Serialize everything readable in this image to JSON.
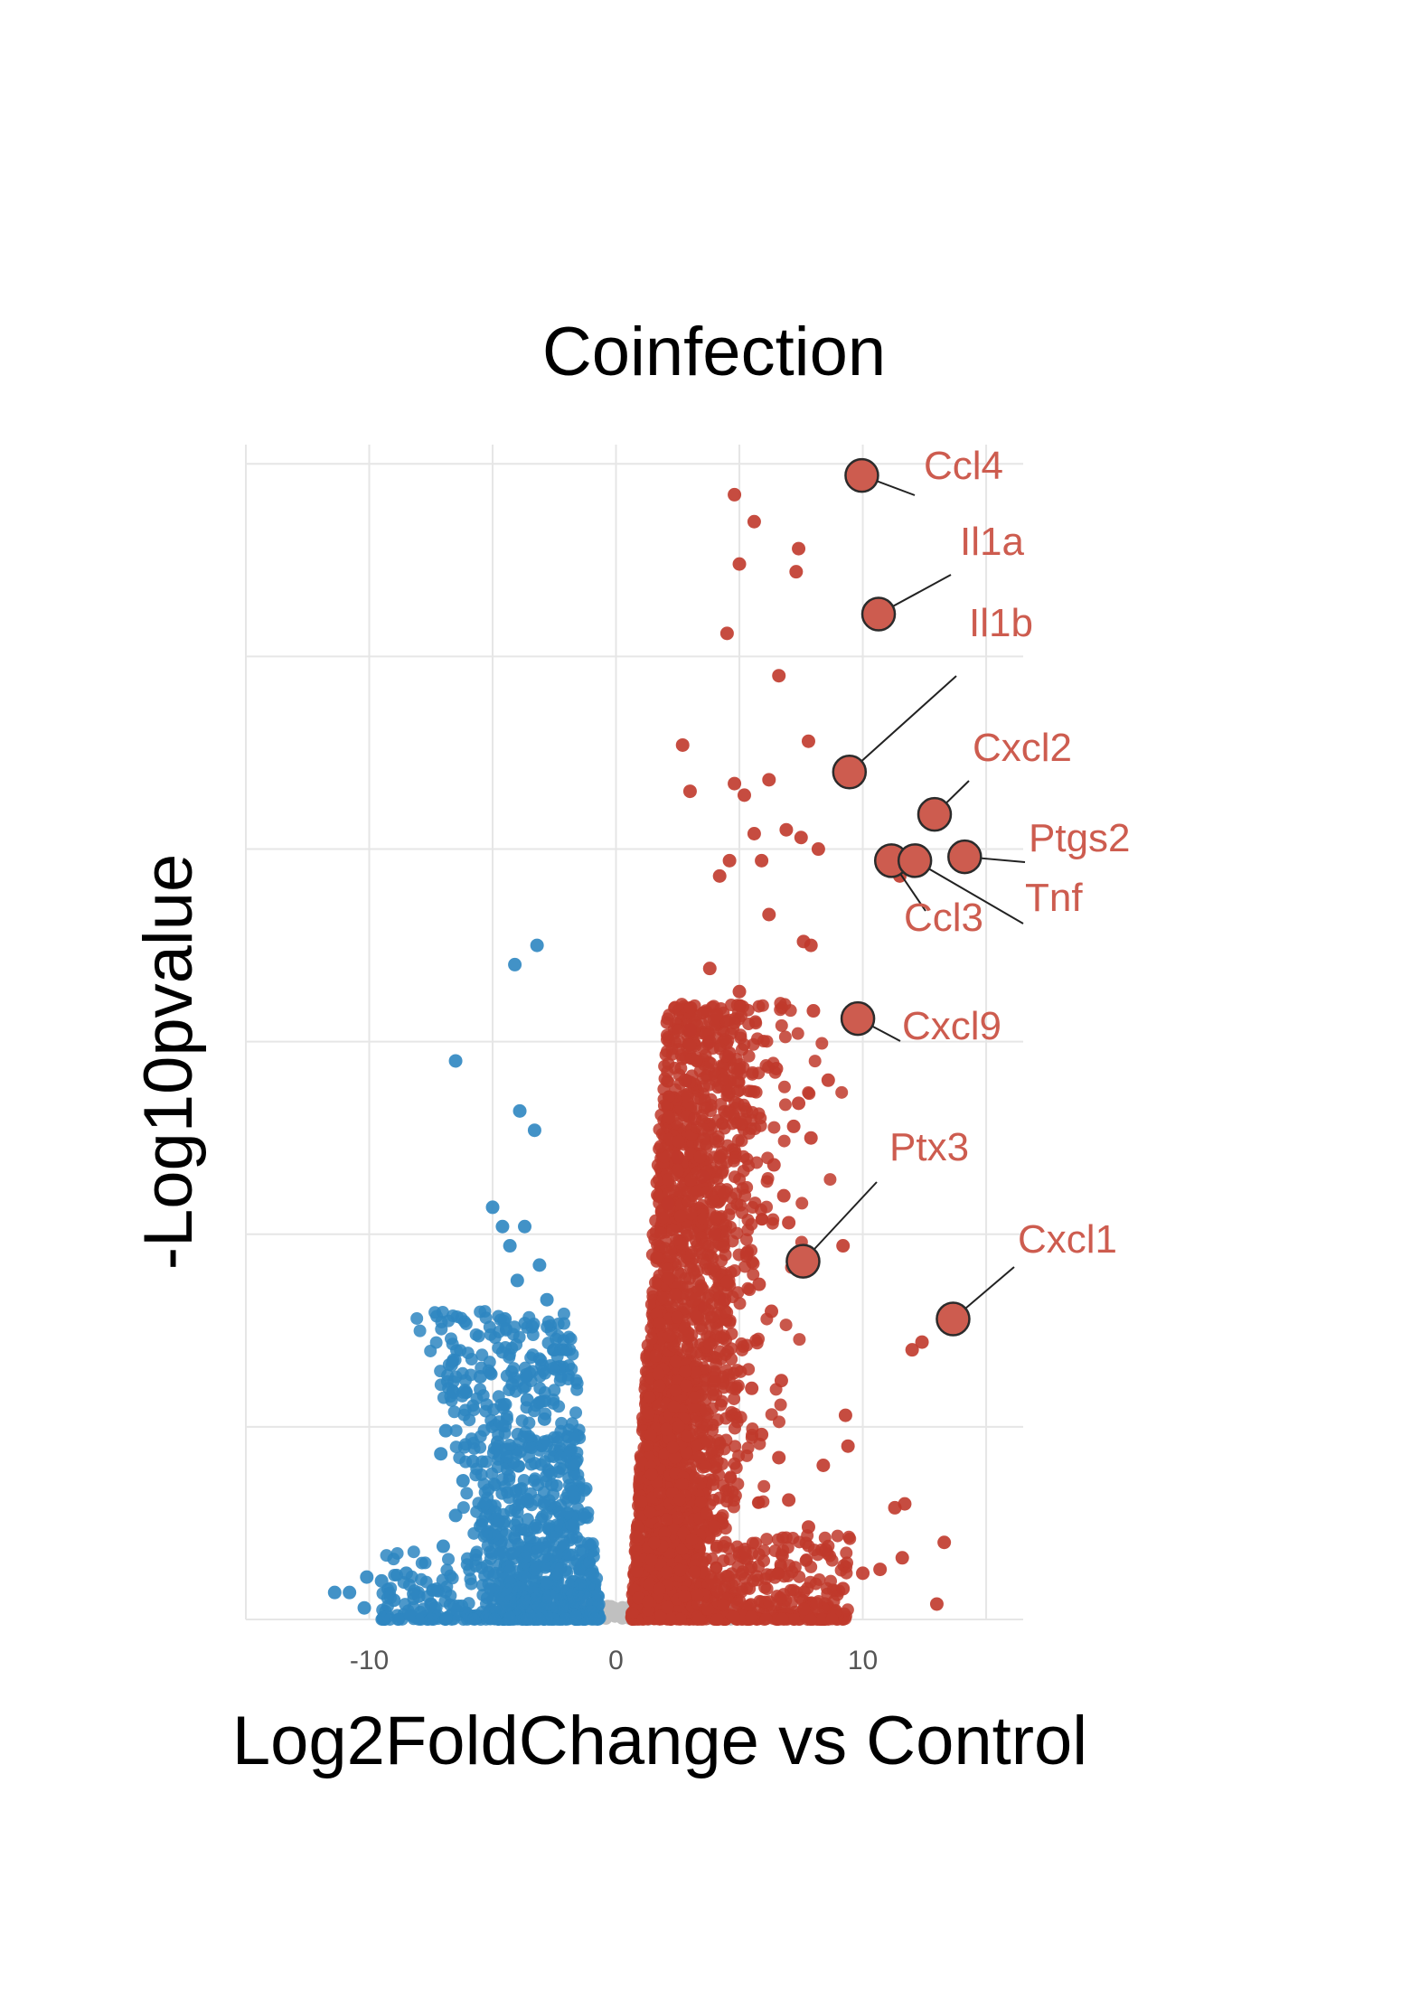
{
  "chart_data": {
    "type": "scatter",
    "title": "Coinfection",
    "xlabel": "Log2FoldChange vs Control",
    "ylabel": "-Log10pvalue",
    "xlim": [
      -15,
      16.5
    ],
    "ylim": [
      0,
      30.5
    ],
    "x_ticks": [
      -10,
      0,
      10
    ],
    "y_grid": [
      0,
      5,
      10,
      15,
      20,
      25,
      30
    ],
    "grid": true,
    "colors": {
      "up": "#c0392b",
      "down": "#2e86c1",
      "ns": "#c0c0c0",
      "highlight": "#cd5c4f",
      "label": "#cd5c4f"
    },
    "series": [
      {
        "group": "down",
        "points": [
          [
            -3.2,
            17.5
          ],
          [
            -4.1,
            17.0
          ],
          [
            -6.5,
            14.5
          ],
          [
            -3.9,
            13.2
          ],
          [
            -3.3,
            12.7
          ],
          [
            -5.0,
            10.7
          ],
          [
            -4.6,
            10.2
          ],
          [
            -3.7,
            10.2
          ],
          [
            -4.3,
            9.7
          ],
          [
            -3.1,
            9.2
          ],
          [
            -4.0,
            8.8
          ],
          [
            -2.8,
            8.3
          ],
          [
            -4.5,
            7.8
          ],
          [
            -3.4,
            7.6
          ],
          [
            -2.5,
            7.0
          ],
          [
            -5.5,
            6.3
          ],
          [
            -3.0,
            6.6
          ],
          [
            -4.2,
            6.1
          ],
          [
            -6.6,
            5.9
          ],
          [
            -3.6,
            5.7
          ],
          [
            -2.9,
            5.2
          ],
          [
            -6.9,
            4.9
          ],
          [
            -4.8,
            4.6
          ],
          [
            -3.5,
            4.5
          ],
          [
            -7.1,
            4.3
          ],
          [
            -5.8,
            4.1
          ],
          [
            -6.2,
            3.6
          ],
          [
            -4.4,
            3.9
          ],
          [
            -2.6,
            3.5
          ],
          [
            -5.2,
            2.9
          ],
          [
            -6.5,
            2.7
          ],
          [
            -7.0,
            1.9
          ],
          [
            -8.5,
            1.2
          ],
          [
            -9.5,
            1.0
          ],
          [
            -10.1,
            1.1
          ],
          [
            -10.8,
            0.7
          ],
          [
            -11.4,
            0.7
          ],
          [
            -10.2,
            0.3
          ],
          [
            -9.0,
            0.5
          ],
          [
            -8.0,
            0.6
          ],
          [
            -7.5,
            0.4
          ]
        ]
      },
      {
        "group": "up",
        "points": [
          [
            4.8,
            29.2
          ],
          [
            5.6,
            28.5
          ],
          [
            7.4,
            27.8
          ],
          [
            5.0,
            27.4
          ],
          [
            7.3,
            27.2
          ],
          [
            4.5,
            25.6
          ],
          [
            6.6,
            24.5
          ],
          [
            2.7,
            22.7
          ],
          [
            7.8,
            22.8
          ],
          [
            6.2,
            21.8
          ],
          [
            4.8,
            21.7
          ],
          [
            3.0,
            21.5
          ],
          [
            5.2,
            21.4
          ],
          [
            6.9,
            20.5
          ],
          [
            5.6,
            20.4
          ],
          [
            7.5,
            20.3
          ],
          [
            8.2,
            20.0
          ],
          [
            4.6,
            19.7
          ],
          [
            11.5,
            19.3
          ],
          [
            4.2,
            19.3
          ],
          [
            5.9,
            19.7
          ],
          [
            6.2,
            18.3
          ],
          [
            7.6,
            17.6
          ],
          [
            7.9,
            17.5
          ],
          [
            3.8,
            16.9
          ],
          [
            5.0,
            16.3
          ],
          [
            8.0,
            15.8
          ],
          [
            3.0,
            15.3
          ],
          [
            3.8,
            15.0
          ],
          [
            4.6,
            14.7
          ],
          [
            6.5,
            14.3
          ],
          [
            8.6,
            14.0
          ],
          [
            7.4,
            13.4
          ],
          [
            7.2,
            12.8
          ],
          [
            7.9,
            12.5
          ],
          [
            6.4,
            11.8
          ],
          [
            6.8,
            11.0
          ],
          [
            7.0,
            10.3
          ],
          [
            9.2,
            9.7
          ],
          [
            12.4,
            7.2
          ],
          [
            12.0,
            7.0
          ],
          [
            9.3,
            5.3
          ],
          [
            9.4,
            4.5
          ],
          [
            8.4,
            4.0
          ],
          [
            11.7,
            3.0
          ],
          [
            11.3,
            2.9
          ],
          [
            13.3,
            2.0
          ],
          [
            11.6,
            1.6
          ],
          [
            10.7,
            1.3
          ],
          [
            9.2,
            0.8
          ],
          [
            13.0,
            0.4
          ],
          [
            2.8,
            14.0
          ],
          [
            3.2,
            13.0
          ],
          [
            2.5,
            12.0
          ],
          [
            2.1,
            10.8
          ],
          [
            3.5,
            11.5
          ],
          [
            4.0,
            10.0
          ],
          [
            5.3,
            9.5
          ],
          [
            5.8,
            8.7
          ],
          [
            6.3,
            8.0
          ],
          [
            4.4,
            8.3
          ],
          [
            3.6,
            8.1
          ],
          [
            6.7,
            6.2
          ],
          [
            5.5,
            6.0
          ],
          [
            5.9,
            4.8
          ],
          [
            6.6,
            4.2
          ],
          [
            7.0,
            3.1
          ],
          [
            7.8,
            2.4
          ],
          [
            8.5,
            1.8
          ],
          [
            10.0,
            1.2
          ]
        ]
      },
      {
        "group": "ns",
        "points": [
          [
            -3.5,
            0.15
          ],
          [
            -2.5,
            0.1
          ],
          [
            -1.5,
            0.2
          ],
          [
            -0.5,
            0.05
          ],
          [
            0.5,
            0.1
          ],
          [
            1.5,
            0.18
          ],
          [
            2.5,
            0.12
          ],
          [
            3.5,
            0.2
          ],
          [
            4.3,
            0.1
          ],
          [
            -4.2,
            0.08
          ],
          [
            3.0,
            0.05
          ],
          [
            -2.0,
            0.05
          ]
        ]
      },
      {
        "group": "highlight",
        "points": [
          {
            "label": "Ccl4",
            "x": 9.96,
            "y": 29.7
          },
          {
            "label": "Il1a",
            "x": 10.64,
            "y": 26.1
          },
          {
            "label": "Il1b",
            "x": 9.46,
            "y": 22.0
          },
          {
            "label": "Cxcl2",
            "x": 12.91,
            "y": 20.9
          },
          {
            "label": "Ptgs2",
            "x": 14.13,
            "y": 19.8
          },
          {
            "label": "Ccl3",
            "x": 11.16,
            "y": 19.7
          },
          {
            "label": "Tnf",
            "x": 12.11,
            "y": 19.7
          },
          {
            "label": "Cxcl9",
            "x": 9.8,
            "y": 15.6
          },
          {
            "label": "Ptx3",
            "x": 7.58,
            "y": 9.3
          },
          {
            "label": "Cxcl1",
            "x": 13.66,
            "y": 7.8
          }
        ]
      }
    ]
  }
}
